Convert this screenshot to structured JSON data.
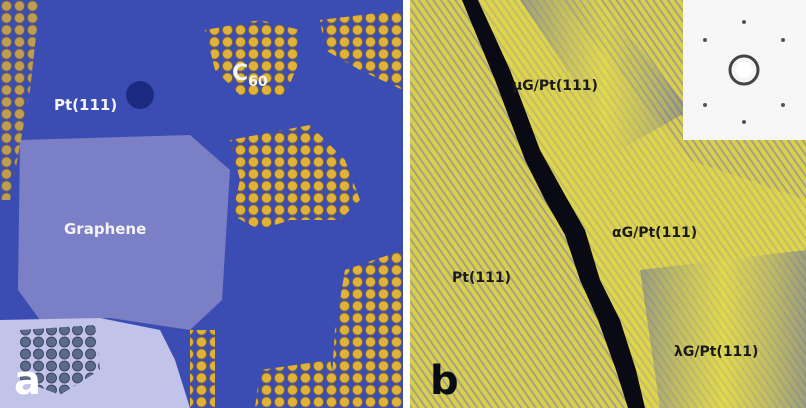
{
  "panels": [
    {
      "letter": "a",
      "annotations": [
        {
          "text": "Pt(111)"
        },
        {
          "text": "C",
          "subscript": "60"
        },
        {
          "text": "Graphene"
        }
      ]
    },
    {
      "letter": "b",
      "annotations": [
        {
          "text": "μG/Pt(111)"
        },
        {
          "text": "αG/Pt(111)"
        },
        {
          "text": "Pt(111)"
        },
        {
          "text": "λG/Pt(111)"
        }
      ]
    }
  ]
}
